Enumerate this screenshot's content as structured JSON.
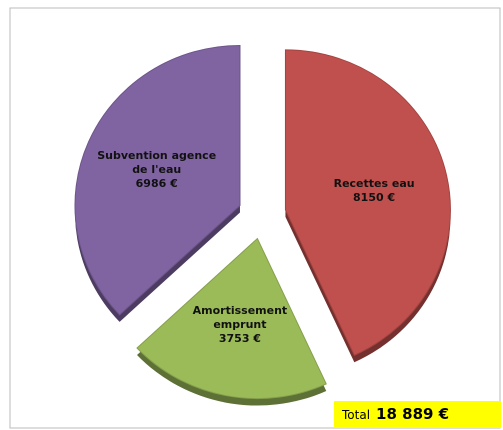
{
  "chart_data": {
    "type": "pie",
    "categories": [
      "Recettes eau",
      "Amortissement emprunt",
      "Subvention agence de l'eau"
    ],
    "values": [
      8150,
      3753,
      6986
    ],
    "value_labels": [
      "8150 €",
      "3753 €",
      "6986 €"
    ],
    "colors": [
      "#c0504d",
      "#9bbb59",
      "#8064a2"
    ],
    "total_label": "Total",
    "total": "18 889 €"
  }
}
